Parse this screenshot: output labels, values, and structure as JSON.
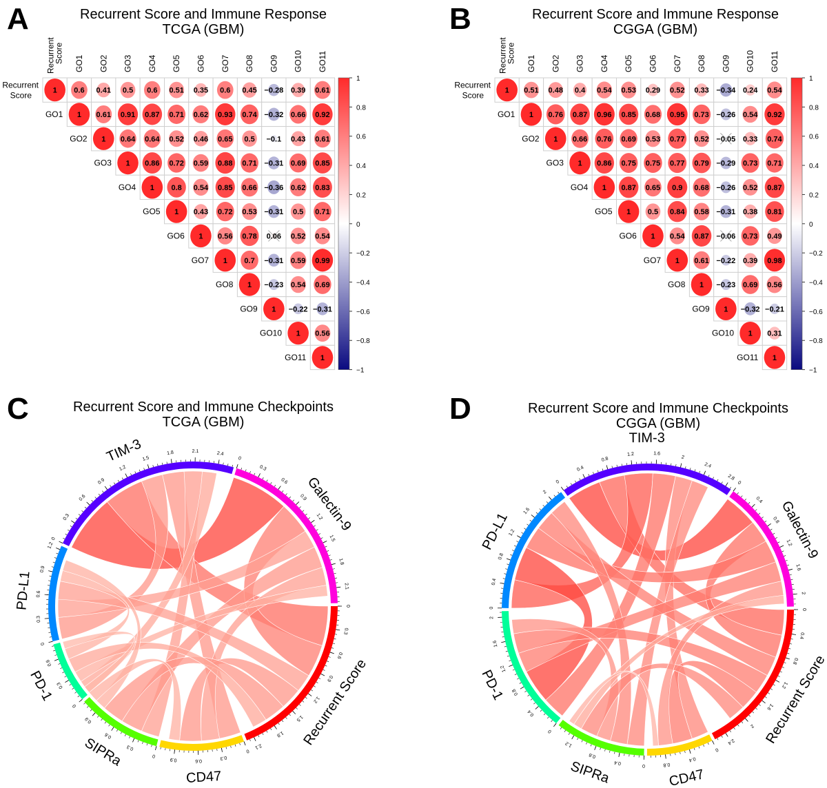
{
  "panels": {
    "A": {
      "letter": "A",
      "title_line1": "Recurrent Score and Immune Response",
      "title_line2": "TCGA (GBM)"
    },
    "B": {
      "letter": "B",
      "title_line1": "Recurrent Score and Immune Response",
      "title_line2": "CGGA (GBM)"
    },
    "C": {
      "letter": "C",
      "title_line1": "Recurrent Score and Immune Checkpoints",
      "title_line2": "TCGA (GBM)"
    },
    "D": {
      "letter": "D",
      "title_line1": "Recurrent Score and Immune Checkpoints",
      "title_line2": "CGGA (GBM)"
    }
  },
  "chart_data": [
    {
      "id": "A",
      "type": "heatmap",
      "subtype": "correlation-upper-triangle",
      "title": "Recurrent Score and Immune Response TCGA (GBM)",
      "labels": [
        "Recurrent Score",
        "GO1",
        "GO2",
        "GO3",
        "GO4",
        "GO5",
        "GO6",
        "GO7",
        "GO8",
        "GO9",
        "GO10",
        "GO11"
      ],
      "matrix_upper_rows": [
        [
          1,
          0.6,
          0.41,
          0.5,
          0.6,
          0.51,
          0.35,
          0.6,
          0.45,
          -0.28,
          0.39,
          0.61
        ],
        [
          1,
          0.61,
          0.91,
          0.87,
          0.71,
          0.62,
          0.93,
          0.74,
          -0.32,
          0.66,
          0.92
        ],
        [
          1,
          0.64,
          0.64,
          0.52,
          0.46,
          0.65,
          0.5,
          -0.1,
          0.43,
          0.61
        ],
        [
          1,
          0.86,
          0.72,
          0.59,
          0.88,
          0.71,
          -0.31,
          0.69,
          0.85
        ],
        [
          1,
          0.8,
          0.54,
          0.85,
          0.66,
          -0.36,
          0.62,
          0.83
        ],
        [
          1,
          0.43,
          0.72,
          0.53,
          -0.31,
          0.5,
          0.71
        ],
        [
          1,
          0.56,
          0.78,
          0.06,
          0.52,
          0.54
        ],
        [
          1,
          0.7,
          -0.31,
          0.59,
          0.99
        ],
        [
          1,
          -0.23,
          0.54,
          0.69
        ],
        [
          1,
          -0.22,
          -0.31
        ],
        [
          1,
          0.56
        ],
        [
          1
        ]
      ],
      "crossed_out": [
        [
          "GO6",
          "GO9"
        ]
      ],
      "colorbar": {
        "range": [
          -1,
          1
        ],
        "ticks": [
          "1",
          "0.8",
          "0.6",
          "0.4",
          "0.2",
          "0",
          "-0.2",
          "-0.4",
          "-0.6",
          "-0.8",
          "-1"
        ],
        "colors": {
          "negative": "#0a0a80",
          "zero": "#ffffff",
          "positive": "#ff2a2a"
        }
      }
    },
    {
      "id": "B",
      "type": "heatmap",
      "subtype": "correlation-upper-triangle",
      "title": "Recurrent Score and Immune Response CGGA (GBM)",
      "labels": [
        "Recurrent Score",
        "GO1",
        "GO2",
        "GO3",
        "GO4",
        "GO5",
        "GO6",
        "GO7",
        "GO8",
        "GO9",
        "GO10",
        "GO11"
      ],
      "matrix_upper_rows": [
        [
          1,
          0.51,
          0.48,
          0.4,
          0.54,
          0.53,
          0.29,
          0.52,
          0.33,
          -0.34,
          0.24,
          0.54
        ],
        [
          1,
          0.76,
          0.87,
          0.96,
          0.85,
          0.68,
          0.95,
          0.73,
          -0.26,
          0.54,
          0.92
        ],
        [
          1,
          0.66,
          0.76,
          0.69,
          0.53,
          0.77,
          0.52,
          -0.05,
          0.33,
          0.74
        ],
        [
          1,
          0.86,
          0.75,
          0.75,
          0.77,
          0.79,
          -0.29,
          0.73,
          0.71
        ],
        [
          1,
          0.87,
          0.65,
          0.9,
          0.68,
          -0.26,
          0.52,
          0.87
        ],
        [
          1,
          0.5,
          0.84,
          0.58,
          -0.31,
          0.38,
          0.81
        ],
        [
          1,
          0.54,
          0.87,
          -0.06,
          0.73,
          0.49
        ],
        [
          1,
          0.61,
          -0.22,
          0.39,
          0.98
        ],
        [
          1,
          -0.23,
          0.69,
          0.56
        ],
        [
          1,
          -0.32,
          -0.21
        ],
        [
          1,
          0.31
        ],
        [
          1
        ]
      ],
      "crossed_out": [
        [
          "GO2",
          "GO9"
        ],
        [
          "GO6",
          "GO9"
        ]
      ],
      "colorbar": {
        "range": [
          -1,
          1
        ],
        "ticks": [
          "1",
          "0.8",
          "0.6",
          "0.4",
          "0.2",
          "0",
          "-0.2",
          "-0.4",
          "-0.6",
          "-0.8",
          "-1"
        ],
        "colors": {
          "negative": "#0a0a80",
          "zero": "#ffffff",
          "positive": "#ff2a2a"
        }
      }
    },
    {
      "id": "C",
      "type": "chord",
      "title": "Recurrent Score and Immune Checkpoints TCGA (GBM)",
      "sectors": [
        {
          "name": "Recurrent Score",
          "color": "#ff0000",
          "total": 2.2,
          "ticks": [
            "0",
            "0.3",
            "0.6",
            "0.9",
            "1.2",
            "1.5",
            "1.8",
            "2.1"
          ]
        },
        {
          "name": "CD47",
          "color": "#ffd700",
          "total": 1.1,
          "ticks": [
            "0",
            "0.3",
            "0.6",
            "0.9"
          ]
        },
        {
          "name": "SIPRa",
          "color": "#55ff00",
          "total": 1.1,
          "ticks": [
            "0",
            "0.3",
            "0.6",
            "0.9"
          ]
        },
        {
          "name": "PD-1",
          "color": "#00ff99",
          "total": 0.8,
          "ticks": [
            "0",
            "0.3",
            "0.6"
          ]
        },
        {
          "name": "PD-L1",
          "color": "#0088ff",
          "total": 1.25,
          "ticks": [
            "0",
            "0.3",
            "0.6",
            "0.9",
            "1.2"
          ]
        },
        {
          "name": "TIM-3",
          "color": "#5500ff",
          "total": 2.6,
          "ticks": [
            "0",
            "0.3",
            "0.6",
            "0.9",
            "1.2",
            "1.5",
            "1.8",
            "2.1",
            "2.4"
          ]
        },
        {
          "name": "Galectin-9",
          "color": "#ff00dd",
          "total": 2.3,
          "ticks": [
            "0",
            "0.3",
            "0.6",
            "0.9",
            "1.2",
            "1.5",
            "1.8",
            "2.1"
          ]
        }
      ],
      "links": [
        {
          "from": "TIM-3",
          "to": "Galectin-9",
          "value": 0.8
        },
        {
          "from": "TIM-3",
          "to": "Recurrent Score",
          "value": 0.55
        },
        {
          "from": "Galectin-9",
          "to": "Recurrent Score",
          "value": 0.45
        },
        {
          "from": "TIM-3",
          "to": "PD-L1",
          "value": 0.3
        },
        {
          "from": "TIM-3",
          "to": "CD47",
          "value": 0.3
        },
        {
          "from": "TIM-3",
          "to": "SIPRa",
          "value": 0.25
        },
        {
          "from": "TIM-3",
          "to": "PD-1",
          "value": 0.2
        },
        {
          "from": "Galectin-9",
          "to": "PD-L1",
          "value": 0.25
        },
        {
          "from": "Galectin-9",
          "to": "SIPRa",
          "value": 0.3
        },
        {
          "from": "Galectin-9",
          "to": "CD47",
          "value": 0.25
        },
        {
          "from": "Galectin-9",
          "to": "PD-1",
          "value": 0.15
        },
        {
          "from": "Recurrent Score",
          "to": "PD-L1",
          "value": 0.25
        },
        {
          "from": "Recurrent Score",
          "to": "CD47",
          "value": 0.3
        },
        {
          "from": "Recurrent Score",
          "to": "SIPRa",
          "value": 0.3
        },
        {
          "from": "Recurrent Score",
          "to": "PD-1",
          "value": 0.2
        },
        {
          "from": "PD-L1",
          "to": "PD-1",
          "value": 0.15
        },
        {
          "from": "PD-L1",
          "to": "SIPRa",
          "value": 0.15
        },
        {
          "from": "CD47",
          "to": "SIPRa",
          "value": 0.15
        },
        {
          "from": "PD-1",
          "to": "SIPRa",
          "value": 0.1
        }
      ]
    },
    {
      "id": "D",
      "type": "chord",
      "title": "Recurrent Score and Immune Checkpoints CGGA (GBM)",
      "sectors": [
        {
          "name": "Recurrent Score",
          "color": "#ff0000",
          "total": 2.6,
          "ticks": [
            "0",
            "0.4",
            "0.8",
            "1.2",
            "1.6",
            "2",
            "2.4"
          ]
        },
        {
          "name": "CD47",
          "color": "#ffd700",
          "total": 1.1,
          "ticks": [
            "0",
            "0.4",
            "0.8"
          ]
        },
        {
          "name": "SIPRa",
          "color": "#55ff00",
          "total": 1.5,
          "ticks": [
            "0",
            "0.4",
            "0.8",
            "1.2"
          ]
        },
        {
          "name": "PD-1",
          "color": "#00ff99",
          "total": 2.1,
          "ticks": [
            "0",
            "0.4",
            "0.8",
            "1.2",
            "1.6",
            "2"
          ]
        },
        {
          "name": "PD-L1",
          "color": "#0088ff",
          "total": 2.2,
          "ticks": [
            "0",
            "0.4",
            "0.8",
            "1.2",
            "1.6",
            "2"
          ]
        },
        {
          "name": "TIM-3",
          "color": "#5500ff",
          "total": 2.9,
          "ticks": [
            "0",
            "0.4",
            "0.8",
            "1.2",
            "1.6",
            "2",
            "2.4",
            "2.8"
          ]
        },
        {
          "name": "Galectin-9",
          "color": "#ff00dd",
          "total": 2.2,
          "ticks": [
            "0",
            "0.4",
            "0.8",
            "1.2",
            "1.6",
            "2"
          ]
        }
      ],
      "links": [
        {
          "from": "TIM-3",
          "to": "Galectin-9",
          "value": 0.6
        },
        {
          "from": "TIM-3",
          "to": "Recurrent Score",
          "value": 0.45
        },
        {
          "from": "Galectin-9",
          "to": "Recurrent Score",
          "value": 0.4
        },
        {
          "from": "TIM-3",
          "to": "PD-L1",
          "value": 0.5
        },
        {
          "from": "TIM-3",
          "to": "PD-1",
          "value": 0.4
        },
        {
          "from": "TIM-3",
          "to": "CD47",
          "value": 0.3
        },
        {
          "from": "TIM-3",
          "to": "SIPRa",
          "value": 0.3
        },
        {
          "from": "PD-L1",
          "to": "PD-1",
          "value": 0.6
        },
        {
          "from": "PD-L1",
          "to": "Galectin-9",
          "value": 0.4
        },
        {
          "from": "PD-L1",
          "to": "Recurrent Score",
          "value": 0.35
        },
        {
          "from": "PD-L1",
          "to": "SIPRa",
          "value": 0.3
        },
        {
          "from": "PD-1",
          "to": "Galectin-9",
          "value": 0.35
        },
        {
          "from": "PD-1",
          "to": "Recurrent Score",
          "value": 0.35
        },
        {
          "from": "PD-1",
          "to": "SIPRa",
          "value": 0.25
        },
        {
          "from": "Recurrent Score",
          "to": "CD47",
          "value": 0.35
        },
        {
          "from": "Recurrent Score",
          "to": "SIPRa",
          "value": 0.3
        },
        {
          "from": "Galectin-9",
          "to": "CD47",
          "value": 0.25
        },
        {
          "from": "Galectin-9",
          "to": "SIPRa",
          "value": 0.15
        },
        {
          "from": "CD47",
          "to": "SIPRa",
          "value": 0.1
        }
      ]
    }
  ]
}
